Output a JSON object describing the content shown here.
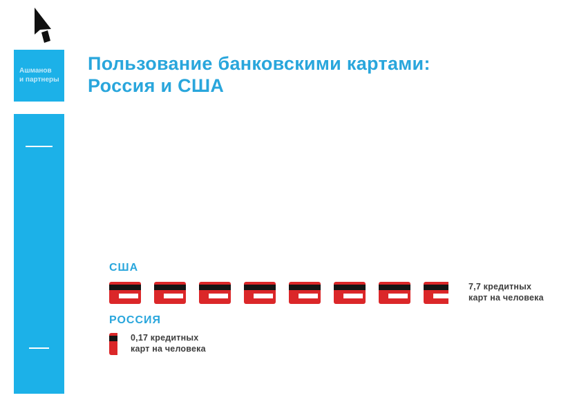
{
  "colors": {
    "blue_bar": "#1CB1E8",
    "blue_text": "#29A6DC",
    "card_red": "#DB2729",
    "stripe_black": "#141414",
    "text_dark": "#3D3D3D",
    "logo_text": "#C2E9F9"
  },
  "logo": {
    "icon": "cursor-arrow-a",
    "line1": "Ашманов",
    "line2": "и партнеры"
  },
  "title": {
    "line1": "Пользование банковскими картами:",
    "line2": "Россия и США"
  },
  "chart_data": {
    "type": "pictograph",
    "title": "Пользование банковскими картами: Россия и США",
    "icon": "credit-card",
    "icon_unit": 1,
    "categories": [
      "США",
      "РОССИЯ"
    ],
    "values": [
      7.7,
      0.17
    ],
    "value_labels": [
      [
        "7,7 кредитных",
        "карт на человека"
      ],
      [
        "0,17 кредитных",
        "карт на человека"
      ]
    ],
    "unit": "кредитных карт на человека",
    "legend": "none",
    "axes": "none"
  }
}
